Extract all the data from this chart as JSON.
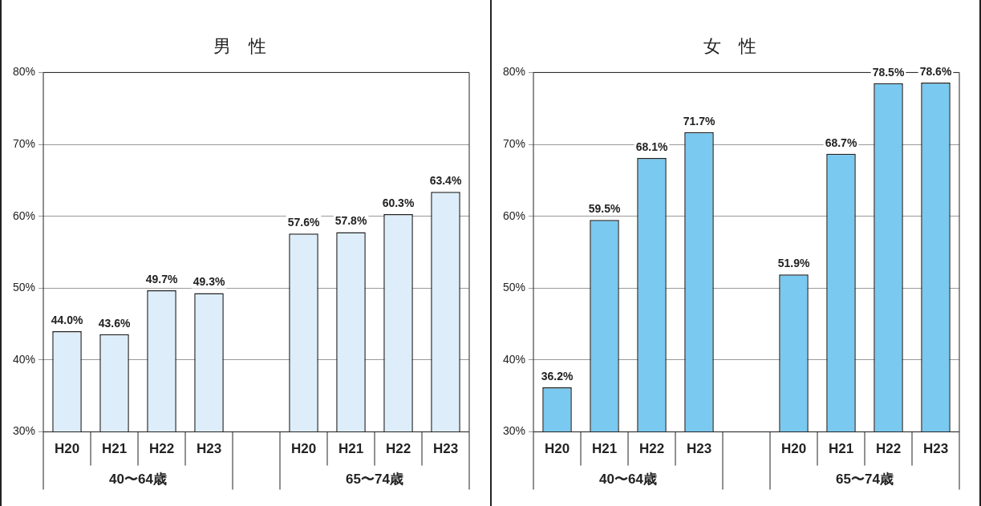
{
  "chart_data": [
    {
      "type": "bar",
      "title": "男　性",
      "categories": [
        "H20",
        "H21",
        "H22",
        "H23",
        null,
        "H20",
        "H21",
        "H22",
        "H23"
      ],
      "values": [
        44.0,
        43.6,
        49.7,
        49.3,
        null,
        57.6,
        57.8,
        60.3,
        63.4
      ],
      "value_labels": [
        "44.0%",
        "43.6%",
        "49.7%",
        "49.3%",
        null,
        "57.6%",
        "57.8%",
        "60.3%",
        "63.4%"
      ],
      "color": "#ddeefa",
      "ylim": [
        30,
        80
      ],
      "yticks": [
        {
          "value": 30,
          "label": "30%"
        },
        {
          "value": 40,
          "label": "40%"
        },
        {
          "value": 50,
          "label": "50%"
        },
        {
          "value": 60,
          "label": "60%"
        },
        {
          "value": 70,
          "label": "70%"
        },
        {
          "value": 80,
          "label": "80%"
        }
      ],
      "grid": "y",
      "legend": false,
      "annotations": [
        "40〜64歳",
        "65〜74歳"
      ]
    },
    {
      "type": "bar",
      "title": "女　性",
      "categories": [
        "H20",
        "H21",
        "H22",
        "H23",
        null,
        "H20",
        "H21",
        "H22",
        "H23"
      ],
      "values": [
        36.2,
        59.5,
        68.1,
        71.7,
        null,
        51.9,
        68.7,
        78.5,
        78.6
      ],
      "value_labels": [
        "36.2%",
        "59.5%",
        "68.1%",
        "71.7%",
        null,
        "51.9%",
        "68.7%",
        "78.5%",
        "78.6%"
      ],
      "color": "#79c9f0",
      "ylim": [
        30,
        80
      ],
      "yticks": [
        {
          "value": 30,
          "label": "30%"
        },
        {
          "value": 40,
          "label": "40%"
        },
        {
          "value": 50,
          "label": "50%"
        },
        {
          "value": 60,
          "label": "60%"
        },
        {
          "value": 70,
          "label": "70%"
        },
        {
          "value": 80,
          "label": "80%"
        }
      ],
      "grid": "y",
      "legend": false,
      "annotations": [
        "40〜64歳",
        "65〜74歳"
      ]
    }
  ]
}
